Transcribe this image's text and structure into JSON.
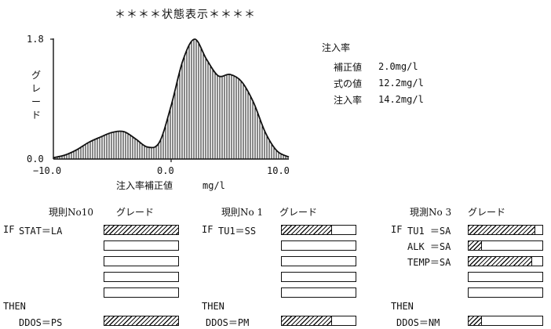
{
  "title": "＊＊＊＊状態表示＊＊＊＊",
  "chart_data": {
    "type": "area",
    "x": [
      -10,
      -9,
      -8,
      -7,
      -6,
      -5,
      -4,
      -3,
      -2,
      -1,
      0,
      1,
      2,
      3,
      4,
      5,
      6,
      7,
      8,
      9,
      10
    ],
    "y": [
      0.02,
      0.06,
      0.14,
      0.25,
      0.33,
      0.4,
      0.41,
      0.3,
      0.18,
      0.25,
      0.8,
      1.48,
      1.8,
      1.5,
      1.25,
      1.27,
      1.16,
      0.85,
      0.4,
      0.12,
      0.03
    ],
    "xlim": [
      -10,
      10
    ],
    "ylim": [
      0,
      1.8
    ],
    "x_ticks": [
      "−10.0",
      "0.0",
      "10.0"
    ],
    "y_ticks": [
      "1.8",
      "0.0"
    ],
    "xlabel": "注入率補正値",
    "xunit": "mg/l",
    "ylabel": "グレード",
    "grid": false,
    "legend": "none"
  },
  "injection": {
    "heading": "注入率",
    "rows": [
      {
        "label": "補正値",
        "value": "2.0mg/l"
      },
      {
        "label": "式の値",
        "value": "12.2mg/l"
      },
      {
        "label": "注入率",
        "value": "14.2mg/l"
      }
    ]
  },
  "rules": [
    {
      "title": "現則No10",
      "grade_label": "グレード",
      "if_label": "IF",
      "conditions": [
        {
          "text": "STAT＝LA",
          "fill": 1.0
        }
      ],
      "empty_bars": 4,
      "then_label": "THEN",
      "result": {
        "text": "DDOS＝PS",
        "fill": 1.0
      }
    },
    {
      "title": "現則No 1",
      "grade_label": "グレード",
      "if_label": "IF",
      "conditions": [
        {
          "text": "TU1＝SS",
          "fill": 0.68
        }
      ],
      "empty_bars": 4,
      "then_label": "THEN",
      "result": {
        "text": "DDOS＝PM",
        "fill": 0.68
      }
    },
    {
      "title": "現測No 3",
      "grade_label": "グレード",
      "if_label": "IF",
      "conditions": [
        {
          "text": "TU1  ＝SA",
          "fill": 0.9
        },
        {
          "text": "ALK  ＝SA",
          "fill": 0.18
        },
        {
          "text": "TEMP＝SA",
          "fill": 0.86
        }
      ],
      "empty_bars": 2,
      "then_label": "THEN",
      "result": {
        "text": "DDOS＝NM",
        "fill": 0.18
      }
    }
  ]
}
